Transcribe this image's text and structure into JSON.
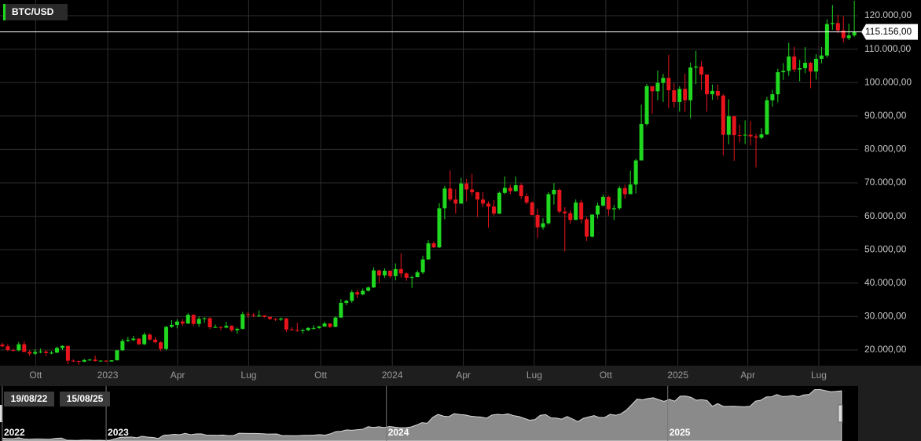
{
  "chart_data": {
    "type": "candlestick",
    "series": [
      {
        "name": "BTC/USD",
        "up_color": "#1fd81f",
        "down_color": "#e8141c",
        "values": [
          [
            21600,
            22200,
            20800,
            21100
          ],
          [
            21100,
            21800,
            19600,
            20000
          ],
          [
            20000,
            20400,
            19500,
            19900
          ],
          [
            19900,
            22400,
            19600,
            21700
          ],
          [
            21700,
            22700,
            19300,
            19400
          ],
          [
            19400,
            19900,
            18200,
            18900
          ],
          [
            18900,
            20200,
            18500,
            19400
          ],
          [
            19400,
            20400,
            19000,
            19500
          ],
          [
            19500,
            19900,
            18200,
            19100
          ],
          [
            19100,
            19700,
            18700,
            19200
          ],
          [
            19200,
            21000,
            19100,
            20600
          ],
          [
            20600,
            21400,
            20000,
            21200
          ],
          [
            21200,
            21400,
            15700,
            16800
          ],
          [
            16800,
            17200,
            16400,
            16700
          ],
          [
            16700,
            16800,
            15600,
            16500
          ],
          [
            16500,
            17300,
            16300,
            17000
          ],
          [
            17000,
            17400,
            16800,
            17100
          ],
          [
            17100,
            18300,
            16500,
            16700
          ],
          [
            16700,
            16900,
            16500,
            16800
          ],
          [
            16800,
            16900,
            16400,
            16550
          ],
          [
            16550,
            17000,
            16500,
            16900
          ],
          [
            16900,
            20000,
            16900,
            19900
          ],
          [
            19900,
            23300,
            19700,
            22700
          ],
          [
            22700,
            23900,
            22400,
            23000
          ],
          [
            23000,
            24200,
            22600,
            23400
          ],
          [
            23400,
            23500,
            21500,
            21700
          ],
          [
            21700,
            25200,
            21500,
            24600
          ],
          [
            24600,
            25000,
            22800,
            23100
          ],
          [
            23100,
            23900,
            22000,
            22300
          ],
          [
            22300,
            22600,
            19600,
            20300
          ],
          [
            20300,
            27200,
            19900,
            26900
          ],
          [
            26900,
            28900,
            26600,
            27500
          ],
          [
            27500,
            29100,
            26500,
            28500
          ],
          [
            28500,
            29200,
            27200,
            27900
          ],
          [
            27900,
            31000,
            27800,
            30500
          ],
          [
            30500,
            30700,
            27100,
            27800
          ],
          [
            27800,
            30000,
            26900,
            29300
          ],
          [
            29300,
            29800,
            28100,
            29500
          ],
          [
            29500,
            29800,
            26200,
            26800
          ],
          [
            26800,
            27600,
            26600,
            26900
          ],
          [
            26900,
            27000,
            25900,
            26700
          ],
          [
            26700,
            28400,
            26500,
            27200
          ],
          [
            27200,
            27400,
            25400,
            25900
          ],
          [
            25900,
            26700,
            24800,
            26300
          ],
          [
            26300,
            31400,
            26200,
            30700
          ],
          [
            30700,
            31300,
            29600,
            30500
          ],
          [
            30500,
            31000,
            29800,
            30300
          ],
          [
            30300,
            31800,
            29900,
            30300
          ],
          [
            30300,
            30400,
            29700,
            29900
          ],
          [
            29900,
            29900,
            28900,
            29300
          ],
          [
            29300,
            29500,
            28700,
            29100
          ],
          [
            29100,
            29700,
            28700,
            29400
          ],
          [
            29400,
            29600,
            25400,
            26100
          ],
          [
            26100,
            26800,
            25800,
            26000
          ],
          [
            26000,
            28100,
            25400,
            25900
          ],
          [
            25900,
            26400,
            24900,
            25900
          ],
          [
            25900,
            26800,
            25600,
            26600
          ],
          [
            26600,
            27400,
            26000,
            26600
          ],
          [
            26600,
            27200,
            26300,
            27000
          ],
          [
            27000,
            28500,
            26900,
            27900
          ],
          [
            27900,
            28000,
            26600,
            26900
          ],
          [
            26900,
            30000,
            26800,
            29700
          ],
          [
            29700,
            35200,
            29600,
            34100
          ],
          [
            34100,
            35000,
            33400,
            34700
          ],
          [
            34700,
            37900,
            34100,
            37300
          ],
          [
            37300,
            38000,
            35500,
            36600
          ],
          [
            36600,
            38400,
            36400,
            37700
          ],
          [
            37700,
            39000,
            37500,
            38700
          ],
          [
            38700,
            44700,
            38600,
            43800
          ],
          [
            43800,
            44000,
            40200,
            42300
          ],
          [
            42300,
            44400,
            41600,
            43700
          ],
          [
            43700,
            43800,
            41500,
            42100
          ],
          [
            42100,
            45900,
            40800,
            44200
          ],
          [
            44200,
            48900,
            41700,
            42900
          ],
          [
            42900,
            43200,
            40700,
            41600
          ],
          [
            41600,
            42200,
            38600,
            41800
          ],
          [
            41800,
            43800,
            41800,
            43200
          ],
          [
            43200,
            48200,
            42700,
            47100
          ],
          [
            47100,
            52800,
            47000,
            51900
          ],
          [
            51900,
            52500,
            50500,
            50700
          ],
          [
            50700,
            63900,
            50500,
            62400
          ],
          [
            62400,
            69100,
            59100,
            68300
          ],
          [
            68300,
            73700,
            64500,
            65000
          ],
          [
            65000,
            68100,
            60800,
            63800
          ],
          [
            63800,
            71500,
            63700,
            69800
          ],
          [
            69800,
            71200,
            64500,
            68000
          ],
          [
            68000,
            72700,
            66100,
            67200
          ],
          [
            67200,
            67300,
            59700,
            65000
          ],
          [
            65000,
            67200,
            62800,
            63800
          ],
          [
            63800,
            64500,
            56600,
            62900
          ],
          [
            62900,
            64900,
            60200,
            60800
          ],
          [
            60800,
            67400,
            60600,
            67000
          ],
          [
            67000,
            71900,
            66600,
            68500
          ],
          [
            68500,
            69500,
            66600,
            67500
          ],
          [
            67500,
            71900,
            67400,
            69300
          ],
          [
            69300,
            69900,
            65100,
            66000
          ],
          [
            66000,
            66900,
            63600,
            64100
          ],
          [
            64100,
            64500,
            60200,
            60400
          ],
          [
            60400,
            62300,
            53500,
            56700
          ],
          [
            56700,
            59400,
            56000,
            57900
          ],
          [
            57900,
            67200,
            57500,
            66600
          ],
          [
            66600,
            69900,
            63500,
            67900
          ],
          [
            67900,
            68300,
            60900,
            61400
          ],
          [
            61400,
            62700,
            49500,
            60900
          ],
          [
            60900,
            61800,
            57800,
            58900
          ],
          [
            58900,
            65000,
            58900,
            64100
          ],
          [
            64100,
            64900,
            57900,
            59100
          ],
          [
            59100,
            59800,
            52600,
            53900
          ],
          [
            53900,
            60600,
            53700,
            60500
          ],
          [
            60500,
            64100,
            59300,
            63200
          ],
          [
            63200,
            66500,
            62900,
            65800
          ],
          [
            65800,
            66100,
            60200,
            62100
          ],
          [
            62100,
            63400,
            58900,
            62400
          ],
          [
            62400,
            69000,
            62000,
            68400
          ],
          [
            68400,
            69500,
            65300,
            66600
          ],
          [
            66600,
            73600,
            66600,
            69500
          ],
          [
            69500,
            77200,
            66800,
            76700
          ],
          [
            76700,
            93400,
            76700,
            87600
          ],
          [
            87600,
            99600,
            87100,
            98900
          ],
          [
            98900,
            98900,
            90700,
            97400
          ],
          [
            97400,
            103600,
            94700,
            99900
          ],
          [
            99900,
            102600,
            94200,
            101400
          ],
          [
            101400,
            108300,
            92300,
            97700
          ],
          [
            97700,
            99800,
            92500,
            94200
          ],
          [
            94200,
            98900,
            91300,
            98100
          ],
          [
            98100,
            102700,
            91200,
            94700
          ],
          [
            94700,
            106000,
            89300,
            104500
          ],
          [
            104500,
            109500,
            99500,
            104800
          ],
          [
            104800,
            106400,
            97800,
            102400
          ],
          [
            102400,
            102500,
            91300,
            96500
          ],
          [
            96500,
            99400,
            94800,
            97500
          ],
          [
            97500,
            99500,
            94900,
            96100
          ],
          [
            96100,
            96500,
            78200,
            84400
          ],
          [
            84400,
            95000,
            81500,
            89900
          ],
          [
            89900,
            90000,
            76600,
            84300
          ],
          [
            84300,
            87400,
            82100,
            84200
          ],
          [
            84200,
            88700,
            81600,
            84400
          ],
          [
            84400,
            88500,
            81200,
            83900
          ],
          [
            83900,
            84700,
            74600,
            83500
          ],
          [
            83500,
            86400,
            83100,
            84500
          ],
          [
            84500,
            95700,
            84300,
            94700
          ],
          [
            94700,
            97800,
            92800,
            96500
          ],
          [
            96500,
            104100,
            94100,
            103100
          ],
          [
            103100,
            105800,
            100800,
            103500
          ],
          [
            103500,
            111900,
            102000,
            107800
          ],
          [
            107800,
            110700,
            103100,
            103900
          ],
          [
            103900,
            106800,
            100400,
            104300
          ],
          [
            104300,
            110600,
            102800,
            105900
          ],
          [
            105900,
            106200,
            98300,
            103300
          ],
          [
            103300,
            108500,
            100900,
            107100
          ],
          [
            107100,
            110600,
            105800,
            108100
          ],
          [
            108100,
            118900,
            107500,
            117500
          ],
          [
            117500,
            123200,
            115800,
            117800
          ],
          [
            117800,
            120300,
            114800,
            115600
          ],
          [
            115600,
            119800,
            112000,
            113300
          ],
          [
            113300,
            117600,
            112700,
            114100
          ],
          [
            114100,
            124500,
            113700,
            115156
          ]
        ]
      }
    ],
    "last_price": {
      "value": 115156,
      "label": "115.156,00"
    },
    "xlim": [
      -0.43,
      156.7
    ],
    "xticks": [
      {
        "value": 6.1,
        "label": "Ott"
      },
      {
        "value": 19.3,
        "label": "2023"
      },
      {
        "value": 32.1,
        "label": "Apr"
      },
      {
        "value": 45.1,
        "label": "Lug"
      },
      {
        "value": 58.3,
        "label": "Ott"
      },
      {
        "value": 71.4,
        "label": "2024"
      },
      {
        "value": 84.4,
        "label": "Apr"
      },
      {
        "value": 97.4,
        "label": "Lug"
      },
      {
        "value": 110.5,
        "label": "Ott"
      },
      {
        "value": 123.7,
        "label": "2025"
      },
      {
        "value": 136.5,
        "label": "Apr"
      },
      {
        "value": 149.5,
        "label": "Lug"
      }
    ],
    "ylim": [
      15300,
      124700
    ],
    "yticks": [
      {
        "value": 20000,
        "label": "20.000,00"
      },
      {
        "value": 30000,
        "label": "30.000,00"
      },
      {
        "value": 40000,
        "label": "40.000,00"
      },
      {
        "value": 50000,
        "label": "50.000,00"
      },
      {
        "value": 60000,
        "label": "60.000,00"
      },
      {
        "value": 70000,
        "label": "70.000,00"
      },
      {
        "value": 80000,
        "label": "80.000,00"
      },
      {
        "value": 90000,
        "label": "90.000,00"
      },
      {
        "value": 100000,
        "label": "100.000,00"
      },
      {
        "value": 110000,
        "label": "110.000,00"
      },
      {
        "value": 120000,
        "label": "120.000,00"
      }
    ],
    "grid": true,
    "range": {
      "start": "19/08/22",
      "end": "15/08/25"
    },
    "navigator_ticks": [
      {
        "value": 0,
        "label": "2022"
      },
      {
        "value": 19.3,
        "label": "2023"
      },
      {
        "value": 71.4,
        "label": "2024"
      },
      {
        "value": 123.7,
        "label": "2025"
      }
    ]
  }
}
